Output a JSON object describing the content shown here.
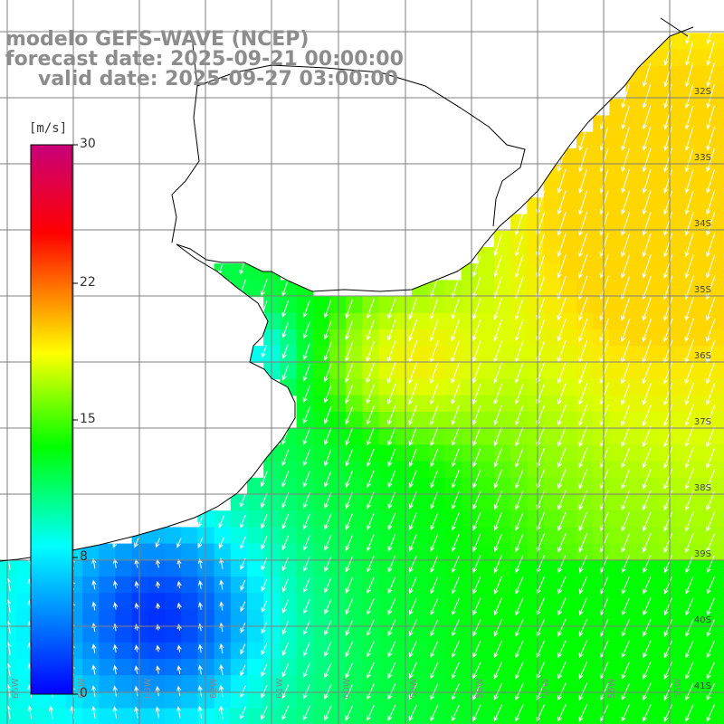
{
  "title": {
    "line1": "modelo GEFS-WAVE (NCEP)",
    "line2": "forecast date: 2025-09-21 00:00:00",
    "line3": "valid date: 2025-09-27 03:00:00"
  },
  "colorbar": {
    "unit": "[m/s]",
    "ticks": [
      "30",
      "22",
      "15",
      "8",
      "0"
    ],
    "stops": [
      "#0000ff",
      "#00ffff",
      "#00ff00",
      "#ffff00",
      "#ff0000",
      "#c8007a"
    ]
  },
  "map": {
    "variable": "wind speed",
    "lat_labels": [
      "32S",
      "33S",
      "34S",
      "35S",
      "36S",
      "37S",
      "38S",
      "39S",
      "40S",
      "41S"
    ],
    "lon_labels": [
      "65W",
      "64W",
      "63W",
      "62W",
      "61W",
      "60W",
      "59W",
      "58W",
      "57W",
      "56W",
      "55W"
    ],
    "land_color": "#ffffff",
    "grid_color": "#7f7f7f",
    "coast_color": "#000000"
  }
}
